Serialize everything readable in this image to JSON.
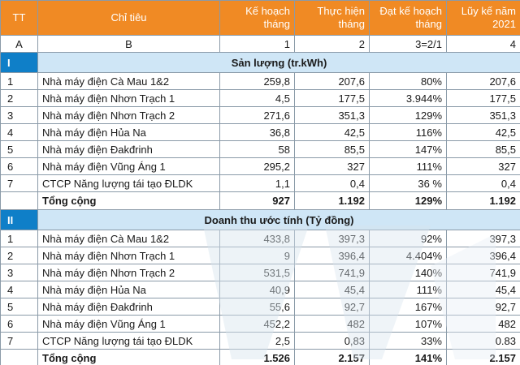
{
  "header": {
    "tt": "TT",
    "chi_tieu": "Chỉ tiêu",
    "kh_1": "Kế hoạch",
    "kh_2": "tháng",
    "th_1": "Thực hiện",
    "th_2": "tháng",
    "dkh_1": "Đạt kế hoạch",
    "dkh_2": "tháng",
    "lk_1": "Lũy kế năm",
    "lk_2": "2021"
  },
  "index_row": [
    "A",
    "B",
    "1",
    "2",
    "3=2/1",
    "4"
  ],
  "section1": {
    "num": "I",
    "title": "Sản lượng (tr.kWh)",
    "rows": [
      {
        "tt": "1",
        "name": "Nhà máy điện Cà Mau 1&2",
        "kh": "259,8",
        "th": "207,6",
        "dkh": "80%",
        "lk": "207,6"
      },
      {
        "tt": "2",
        "name": "Nhà máy điện Nhơn Trạch  1",
        "kh": "4,5",
        "th": "177,5",
        "dkh": "3.944%",
        "lk": "177,5"
      },
      {
        "tt": "3",
        "name": "Nhà máy điện Nhơn Trạch  2",
        "kh": "271,6",
        "th": "351,3",
        "dkh": "129%",
        "lk": "351,3"
      },
      {
        "tt": "4",
        "name": "Nhà máy điện Hủa Na",
        "kh": "36,8",
        "th": "42,5",
        "dkh": "116%",
        "lk": "42,5"
      },
      {
        "tt": "5",
        "name": "Nhà máy điện Đakđrinh",
        "kh": "58",
        "th": "85,5",
        "dkh": "147%",
        "lk": "85,5"
      },
      {
        "tt": "6",
        "name": "Nhà máy điện Vũng Áng 1",
        "kh": "295,2",
        "th": "327",
        "dkh": "111%",
        "lk": "327"
      },
      {
        "tt": "7",
        "name": "CTCP Năng lượng tái tạo ĐLDK",
        "kh": "1,1",
        "th": "0,4",
        "dkh": "36 %",
        "lk": "0,4"
      }
    ],
    "total": {
      "name": "Tổng cộng",
      "kh": "927",
      "th": "1.192",
      "dkh": "129%",
      "lk": "1.192"
    }
  },
  "section2": {
    "num": "II",
    "title": "Doanh thu ước tính (Tỷ đồng)",
    "rows": [
      {
        "tt": "1",
        "name": "Nhà máy điện Cà Mau 1&2",
        "kh": "433,8",
        "th": "397,3",
        "dkh": "92%",
        "lk": "397,3"
      },
      {
        "tt": "2",
        "name": "Nhà máy điện Nhơn Trạch  1",
        "kh": "9",
        "th": "396,4",
        "dkh": "4.404%",
        "lk": "396,4"
      },
      {
        "tt": "3",
        "name": "Nhà máy điện Nhơn Trạch  2",
        "kh": "531,5",
        "th": "741,9",
        "dkh": "140%",
        "lk": "741,9"
      },
      {
        "tt": "4",
        "name": "Nhà máy điện Hủa Na",
        "kh": "40,9",
        "th": "45,4",
        "dkh": "111%",
        "lk": "45,4"
      },
      {
        "tt": "5",
        "name": "Nhà máy điện Đakđrinh",
        "kh": "55,6",
        "th": "92,7",
        "dkh": "167%",
        "lk": "92,7"
      },
      {
        "tt": "6",
        "name": "Nhà máy điện Vũng Áng 1",
        "kh": "452,2",
        "th": "482",
        "dkh": "107%",
        "lk": "482"
      },
      {
        "tt": "7",
        "name": "CTCP Năng lượng tái tạo ĐLDK",
        "kh": "2,5",
        "th": "0,83",
        "dkh": "33%",
        "lk": "0.83"
      }
    ],
    "total": {
      "name": "Tổng cộng",
      "kh": "1.526",
      "th": "2.157",
      "dkh": "141%",
      "lk": "2.157"
    }
  },
  "colors": {
    "header_orange": "#f08a24",
    "section_blue": "#0f7fc8",
    "section_light": "#cfe6f6",
    "border": "#8a9aa8",
    "watermark": "#d8e4ee"
  },
  "watermark_icon": "logo-watermark"
}
